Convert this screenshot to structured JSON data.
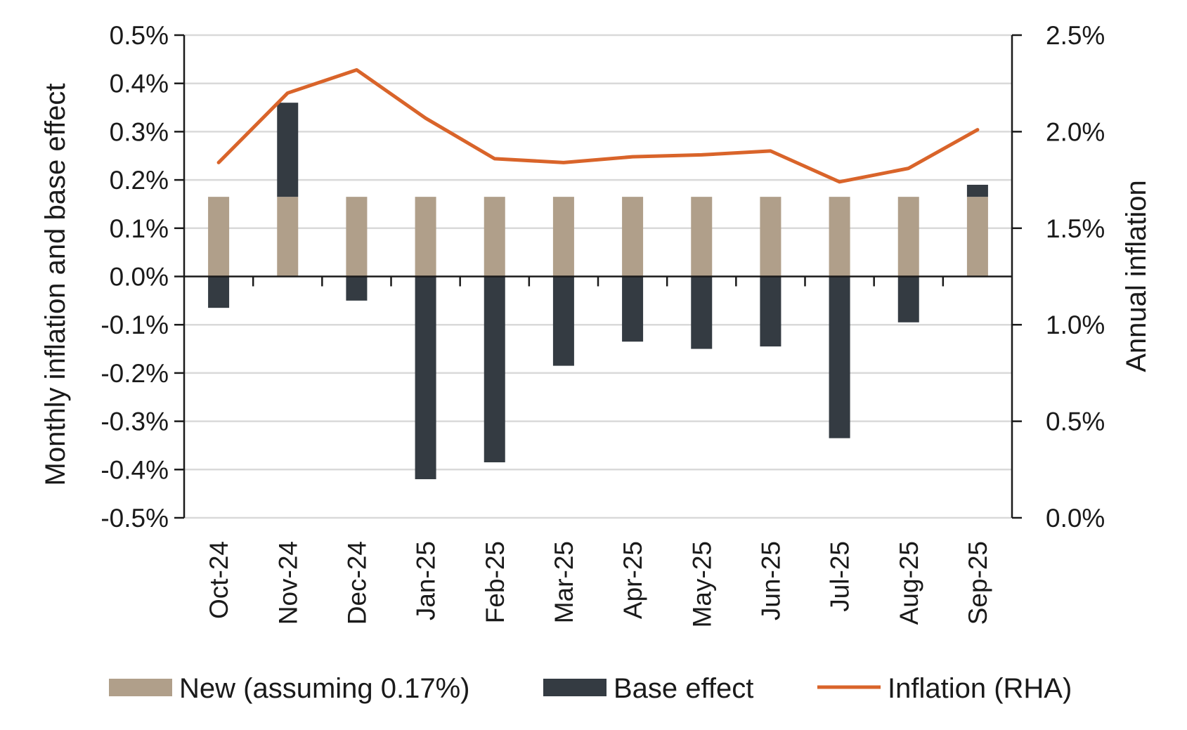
{
  "chart_data": {
    "type": "bar",
    "subtype": "stacked bar with line on secondary axis",
    "categories": [
      "Oct-24",
      "Nov-24",
      "Dec-24",
      "Jan-25",
      "Feb-25",
      "Mar-25",
      "Apr-25",
      "May-25",
      "Jun-25",
      "Jul-25",
      "Aug-25",
      "Sep-25"
    ],
    "series": [
      {
        "name": "New (assuming 0.17%)",
        "kind": "bar",
        "axis": "left",
        "color": "#b09f8a",
        "values": [
          0.165,
          0.165,
          0.165,
          0.165,
          0.165,
          0.165,
          0.165,
          0.165,
          0.165,
          0.165,
          0.165,
          0.165
        ]
      },
      {
        "name": "Base effect",
        "kind": "bar",
        "axis": "left",
        "color": "#343b42",
        "values": [
          -0.065,
          0.195,
          -0.05,
          -0.42,
          -0.385,
          -0.185,
          -0.135,
          -0.15,
          -0.145,
          -0.335,
          -0.095,
          0.025
        ]
      },
      {
        "name": "Inflation (RHA)",
        "kind": "line",
        "axis": "right",
        "color": "#d9642a",
        "values": [
          1.84,
          2.2,
          2.32,
          2.07,
          1.86,
          1.84,
          1.87,
          1.88,
          1.9,
          1.74,
          1.81,
          2.01
        ]
      }
    ],
    "ylabel_left": "Monthly inflation and base effect",
    "ylabel_right": "Annual inflation",
    "ylim_left": [
      -0.5,
      0.5
    ],
    "ylim_right": [
      0.0,
      2.5
    ],
    "yticks_left": [
      "0.5%",
      "0.4%",
      "0.3%",
      "0.2%",
      "0.1%",
      "0.0%",
      "-0.1%",
      "-0.2%",
      "-0.3%",
      "-0.4%",
      "-0.5%"
    ],
    "yticks_right": [
      "2.5%",
      "2.0%",
      "1.5%",
      "1.0%",
      "0.5%",
      "0.0%"
    ],
    "grid": true,
    "legend_position": "bottom"
  }
}
